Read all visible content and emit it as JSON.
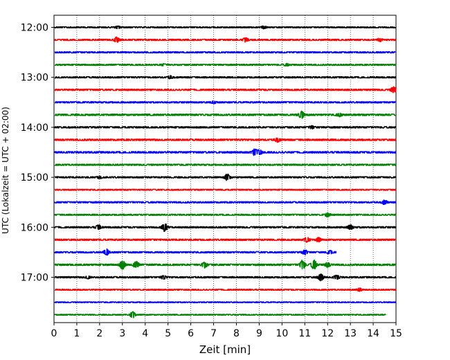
{
  "chart_data": {
    "type": "line",
    "subtype": "helicorder",
    "xlabel": "Zeit  [min]",
    "ylabel": "UTC (Lokalzeit = UTC + 02:00)",
    "xlim": [
      0,
      15
    ],
    "x_ticks": [
      0,
      1,
      2,
      3,
      4,
      5,
      6,
      7,
      8,
      9,
      10,
      11,
      12,
      13,
      14,
      15
    ],
    "y_tick_labels": [
      "12:00",
      "13:00",
      "14:00",
      "15:00",
      "16:00",
      "17:00"
    ],
    "vertical_grid": "dotted",
    "colors": [
      "#000000",
      "#ff0000",
      "#0000ff",
      "#008000"
    ],
    "traces": [
      {
        "start": "12:00",
        "end_min": 15,
        "amp": 0.25,
        "events": [
          [
            2.8,
            0.5
          ],
          [
            9.2,
            0.5
          ]
        ]
      },
      {
        "start": "12:15",
        "end_min": 15,
        "amp": 0.3,
        "events": [
          [
            2.75,
            1.0
          ],
          [
            8.4,
            0.8
          ],
          [
            14.3,
            0.6
          ]
        ]
      },
      {
        "start": "12:30",
        "end_min": 15,
        "amp": 0.28,
        "events": []
      },
      {
        "start": "12:45",
        "end_min": 15,
        "amp": 0.28,
        "events": [
          [
            4.8,
            0.4
          ],
          [
            10.2,
            0.4
          ]
        ]
      },
      {
        "start": "13:00",
        "end_min": 15,
        "amp": 0.3,
        "events": [
          [
            5.1,
            0.5
          ]
        ]
      },
      {
        "start": "13:15",
        "end_min": 15,
        "amp": 0.32,
        "events": [
          [
            14.9,
            1.3
          ]
        ]
      },
      {
        "start": "13:30",
        "end_min": 15,
        "amp": 0.3,
        "events": [
          [
            7.0,
            0.4
          ]
        ]
      },
      {
        "start": "13:45",
        "end_min": 15,
        "amp": 0.35,
        "events": [
          [
            10.85,
            1.5
          ],
          [
            12.5,
            0.6
          ]
        ]
      },
      {
        "start": "14:00",
        "end_min": 15,
        "amp": 0.32,
        "events": [
          [
            11.3,
            0.6
          ]
        ]
      },
      {
        "start": "14:15",
        "end_min": 15,
        "amp": 0.35,
        "events": [
          [
            9.8,
            0.8
          ]
        ]
      },
      {
        "start": "14:30",
        "end_min": 15,
        "amp": 0.35,
        "events": [
          [
            8.8,
            1.2
          ],
          [
            9.0,
            1.0
          ]
        ]
      },
      {
        "start": "14:45",
        "end_min": 15,
        "amp": 0.3,
        "events": []
      },
      {
        "start": "15:00",
        "end_min": 15,
        "amp": 0.3,
        "events": [
          [
            7.6,
            1.4
          ],
          [
            2.0,
            0.4
          ]
        ]
      },
      {
        "start": "15:15",
        "end_min": 15,
        "amp": 0.25,
        "events": []
      },
      {
        "start": "15:30",
        "end_min": 15,
        "amp": 0.3,
        "events": [
          [
            14.5,
            0.8
          ]
        ]
      },
      {
        "start": "15:45",
        "end_min": 15,
        "amp": 0.28,
        "events": [
          [
            12.0,
            0.8
          ]
        ]
      },
      {
        "start": "16:00",
        "end_min": 15,
        "amp": 0.32,
        "events": [
          [
            1.95,
            0.9
          ],
          [
            4.85,
            1.8
          ],
          [
            13.0,
            0.9
          ]
        ]
      },
      {
        "start": "16:15",
        "end_min": 15,
        "amp": 0.32,
        "events": [
          [
            11.1,
            1.0
          ],
          [
            11.6,
            0.8
          ]
        ]
      },
      {
        "start": "16:30",
        "end_min": 12.4,
        "amp": 0.3,
        "events": [
          [
            2.3,
            1.3
          ],
          [
            11.0,
            0.9
          ],
          [
            12.1,
            0.7
          ]
        ]
      },
      {
        "start": "16:45",
        "end_min": 15,
        "amp": 0.35,
        "events": [
          [
            3.0,
            1.8
          ],
          [
            3.6,
            1.4
          ],
          [
            6.6,
            1.2
          ],
          [
            10.9,
            1.9
          ],
          [
            11.4,
            1.9
          ],
          [
            12.0,
            0.9
          ]
        ]
      },
      {
        "start": "17:00",
        "end_min": 15,
        "amp": 0.32,
        "events": [
          [
            1.5,
            0.5
          ],
          [
            4.8,
            0.6
          ],
          [
            11.7,
            1.4
          ],
          [
            12.4,
            0.8
          ]
        ]
      },
      {
        "start": "17:15",
        "end_min": 15,
        "amp": 0.25,
        "events": [
          [
            13.4,
            0.6
          ]
        ]
      },
      {
        "start": "17:30",
        "end_min": 15,
        "amp": 0.2,
        "events": []
      },
      {
        "start": "17:45",
        "end_min": 14.55,
        "amp": 0.22,
        "events": [
          [
            3.45,
            1.4
          ]
        ]
      }
    ]
  }
}
